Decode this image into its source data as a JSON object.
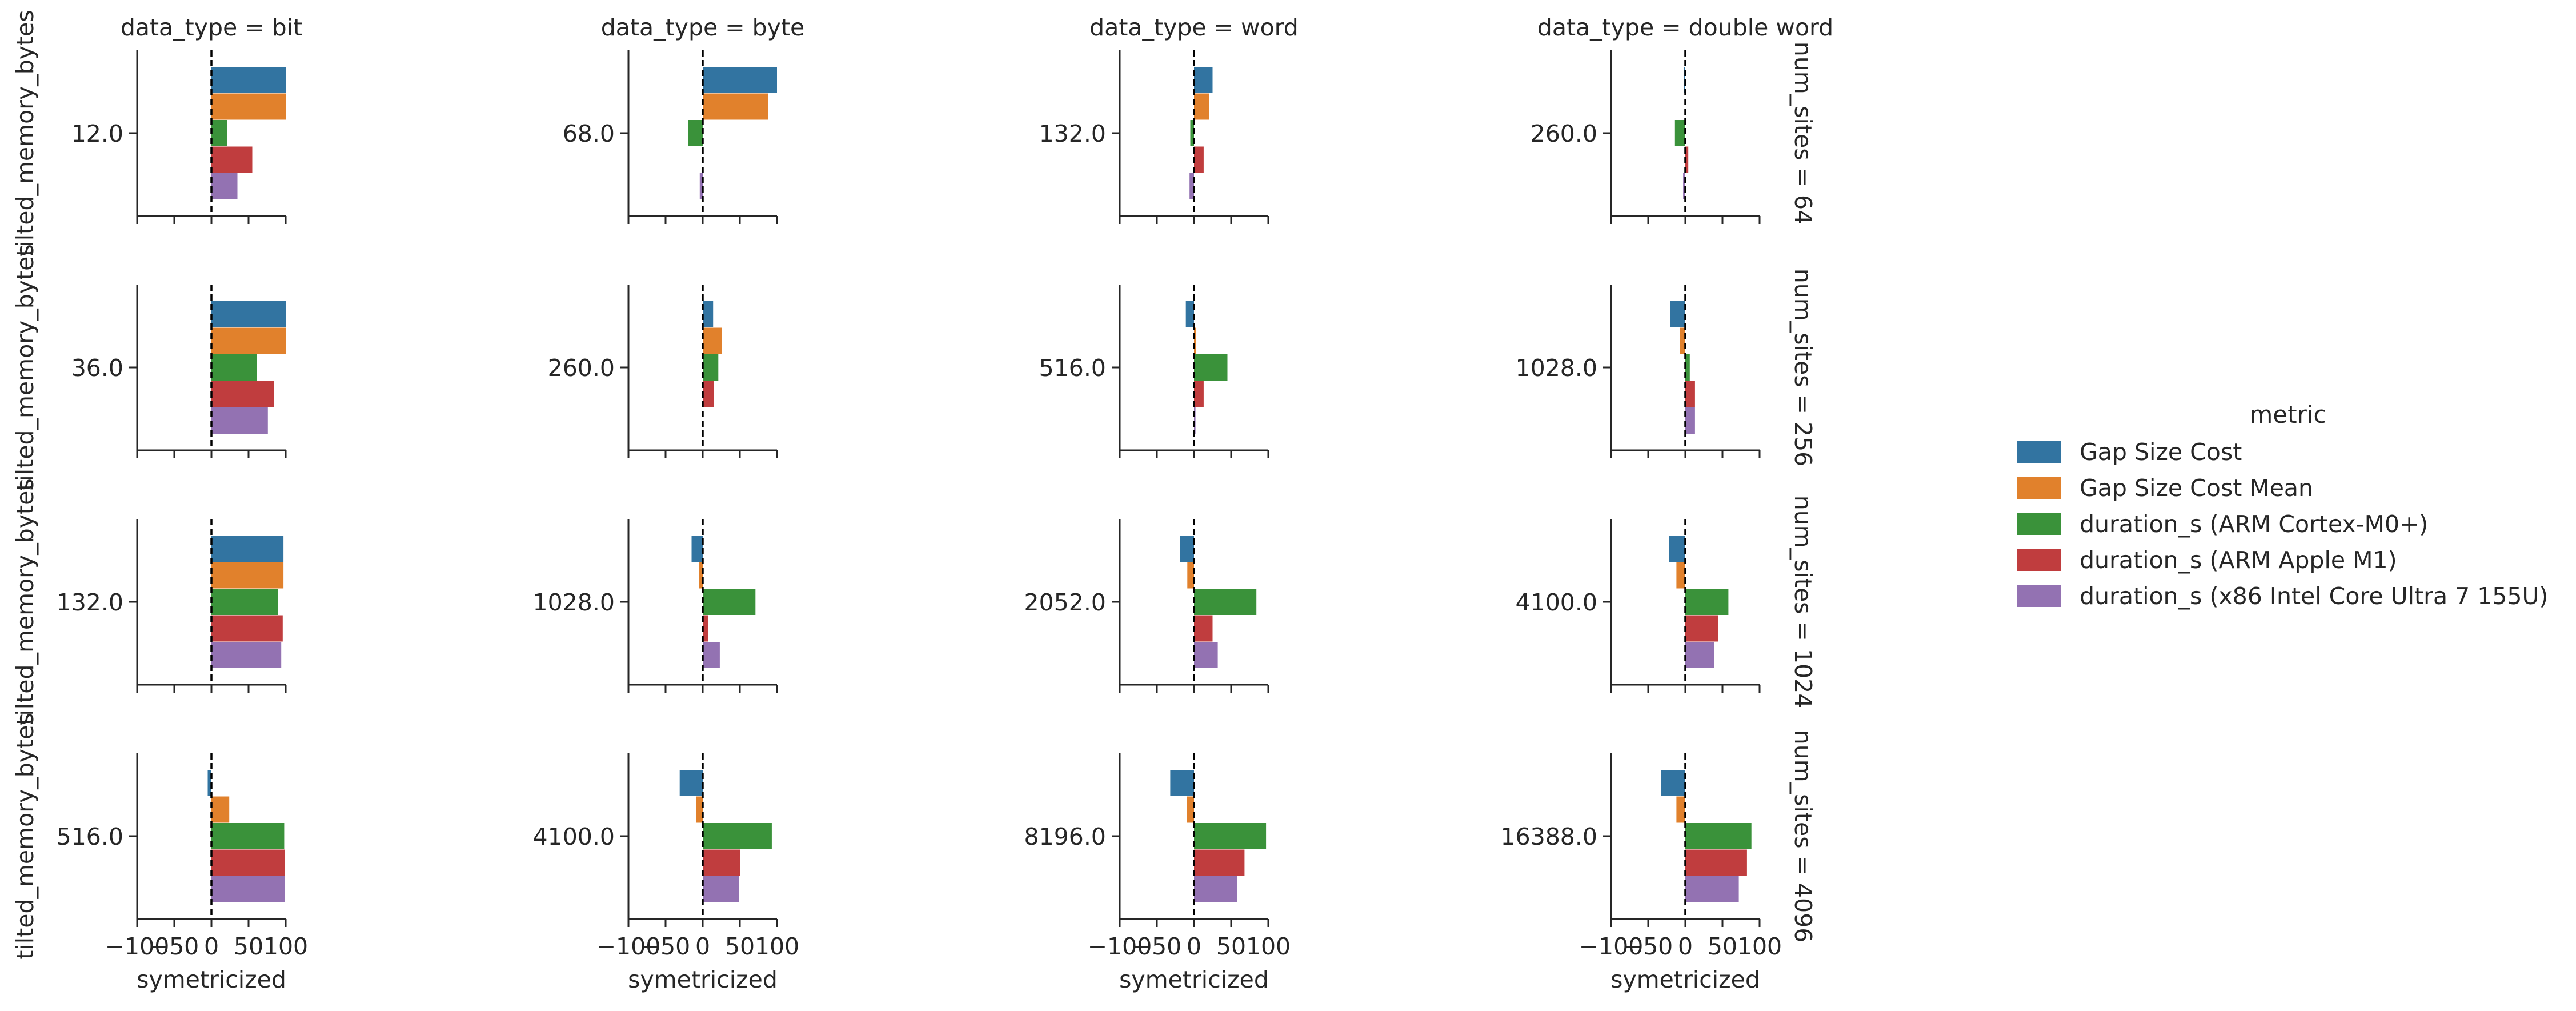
{
  "chart_data": {
    "type": "bar",
    "orientation": "horizontal",
    "facet_col_label": "data_type",
    "facet_row_label": "num_sites",
    "columns": [
      "bit",
      "byte",
      "word",
      "double word"
    ],
    "rows": [
      "64",
      "256",
      "1024",
      "4096"
    ],
    "col_titles": [
      "data_type = bit",
      "data_type = byte",
      "data_type = word",
      "data_type = double word"
    ],
    "row_titles": [
      "num_sites = 64",
      "num_sites = 256",
      "num_sites = 1024",
      "num_sites = 4096"
    ],
    "xlabel": "symetricized",
    "ylabel": "tilted_memory_bytes",
    "xlim": [
      -100,
      100
    ],
    "xticks": [
      "−100",
      "−50",
      "0",
      "50",
      "100"
    ],
    "xtick_values": [
      -100,
      -50,
      0,
      50,
      100
    ],
    "reference_line": 0,
    "grid": false,
    "legend": {
      "title": "metric",
      "placement": "right",
      "entries": [
        {
          "name": "Gap Size Cost",
          "color": "#3274a1"
        },
        {
          "name": "Gap Size Cost Mean",
          "color": "#e1812c"
        },
        {
          "name": "duration_s (ARM Cortex-M0+)",
          "color": "#3a923a"
        },
        {
          "name": "duration_s (ARM Apple M1)",
          "color": "#c03d3e"
        },
        {
          "name": "duration_s (x86 Intel Core Ultra 7 155U)",
          "color": "#9372b2"
        }
      ]
    },
    "panels": [
      [
        {
          "category": "12.0",
          "values": [
            100,
            100,
            21,
            55,
            35
          ]
        },
        {
          "category": "68.0",
          "values": [
            100,
            88,
            -20,
            0,
            -4
          ]
        },
        {
          "category": "132.0",
          "values": [
            25,
            20,
            -5,
            13,
            -6
          ]
        },
        {
          "category": "260.0",
          "values": [
            -2,
            0,
            -14,
            4,
            -3
          ]
        }
      ],
      [
        {
          "category": "36.0",
          "values": [
            100,
            100,
            61,
            84,
            76
          ]
        },
        {
          "category": "260.0",
          "values": [
            14,
            26,
            21,
            15,
            0
          ]
        },
        {
          "category": "516.0",
          "values": [
            -11,
            3,
            45,
            13,
            2
          ]
        },
        {
          "category": "1028.0",
          "values": [
            -20,
            -7,
            6,
            13,
            13
          ]
        }
      ],
      [
        {
          "category": "132.0",
          "values": [
            97,
            97,
            90,
            96,
            94
          ]
        },
        {
          "category": "1028.0",
          "values": [
            -15,
            -5,
            71,
            7,
            23
          ]
        },
        {
          "category": "2052.0",
          "values": [
            -19,
            -9,
            84,
            25,
            32
          ]
        },
        {
          "category": "4100.0",
          "values": [
            -22,
            -12,
            58,
            44,
            39
          ]
        }
      ],
      [
        {
          "category": "516.0",
          "values": [
            -5,
            24,
            98,
            99,
            99
          ]
        },
        {
          "category": "4100.0",
          "values": [
            -31,
            -9,
            93,
            50,
            49
          ]
        },
        {
          "category": "8196.0",
          "values": [
            -32,
            -10,
            97,
            68,
            58
          ]
        },
        {
          "category": "16388.0",
          "values": [
            -33,
            -12,
            89,
            83,
            72
          ]
        }
      ]
    ]
  }
}
